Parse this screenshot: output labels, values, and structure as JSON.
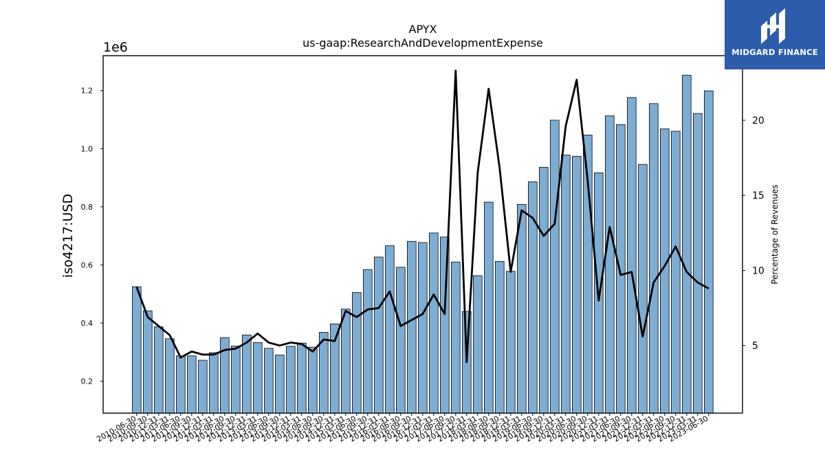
{
  "logo": {
    "text": "MIDGARD FINANCE",
    "background": "#2d5cab"
  },
  "chart_data": {
    "type": "bar",
    "title": "APYX",
    "subtitle": "us-gaap:ResearchAndDevelopmentExpense",
    "ylabel": "iso4217:USD",
    "y_offset_text": "1e6",
    "y2label": "Percentage of Revenues",
    "ylim": [
      0.09,
      1.32
    ],
    "y2lim": [
      0.5,
      24.3
    ],
    "yticks": [
      "0.2",
      "0.4",
      "0.6",
      "0.8",
      "1.0",
      "1.2"
    ],
    "y2ticks": [
      "5",
      "10",
      "15",
      "20"
    ],
    "bar_color": "#7eadd4",
    "line_color": "#000000",
    "categories": [
      "2010-06-30",
      "2010-09-30",
      "2010-12-31",
      "2011-03-31",
      "2011-06-30",
      "2011-09-30",
      "2011-12-31",
      "2012-03-31",
      "2012-06-30",
      "2012-09-30",
      "2012-12-31",
      "2013-03-31",
      "2013-06-30",
      "2013-09-30",
      "2013-12-31",
      "2014-03-31",
      "2014-06-30",
      "2014-09-30",
      "2014-12-31",
      "2015-03-31",
      "2015-06-30",
      "2015-09-30",
      "2015-12-31",
      "2016-03-31",
      "2016-06-30",
      "2016-09-30",
      "2016-12-31",
      "2017-03-31",
      "2017-06-30",
      "2017-09-30",
      "2017-12-31",
      "2018-03-31",
      "2018-06-30",
      "2018-09-30",
      "2018-12-31",
      "2019-03-31",
      "2019-06-30",
      "2019-09-30",
      "2019-12-31",
      "2020-03-31",
      "2020-06-30",
      "2020-09-30",
      "2020-12-31",
      "2021-03-31",
      "2021-06-30",
      "2021-09-30",
      "2021-12-31",
      "2022-03-31",
      "2022-06-30",
      "2022-09-30",
      "2022-12-31",
      "2023-03-31",
      "2023-06-30"
    ],
    "series": [
      {
        "kind": "bar",
        "axis": "left",
        "values": [
          0.525,
          0.442,
          0.387,
          0.346,
          0.287,
          0.287,
          0.272,
          0.298,
          0.35,
          0.321,
          0.359,
          0.333,
          0.313,
          0.29,
          0.32,
          0.331,
          0.317,
          0.368,
          0.397,
          0.448,
          0.505,
          0.584,
          0.627,
          0.666,
          0.592,
          0.681,
          0.677,
          0.71,
          0.696,
          0.61,
          0.44,
          0.563,
          0.816,
          0.612,
          0.578,
          0.808,
          0.886,
          0.936,
          1.098,
          0.978,
          0.974,
          1.047,
          0.917,
          1.113,
          1.083,
          1.176,
          0.946,
          1.155,
          1.068,
          1.06,
          1.253,
          1.121,
          1.199
        ]
      },
      {
        "kind": "line",
        "axis": "right",
        "values": [
          8.9,
          6.9,
          6.3,
          5.7,
          4.2,
          4.6,
          4.4,
          4.4,
          4.7,
          4.8,
          5.2,
          5.8,
          5.2,
          5.0,
          5.2,
          5.1,
          4.6,
          5.4,
          5.3,
          7.3,
          6.9,
          7.4,
          7.5,
          8.6,
          6.3,
          6.7,
          7.1,
          8.4,
          7.1,
          23.3,
          3.9,
          16.5,
          22.1,
          16.8,
          9.9,
          14.0,
          13.5,
          12.3,
          13.1,
          19.6,
          22.7,
          16.0,
          8.0,
          12.9,
          9.7,
          9.9,
          5.6,
          9.2,
          10.3,
          11.6,
          9.9,
          9.2,
          8.8
        ]
      }
    ]
  }
}
